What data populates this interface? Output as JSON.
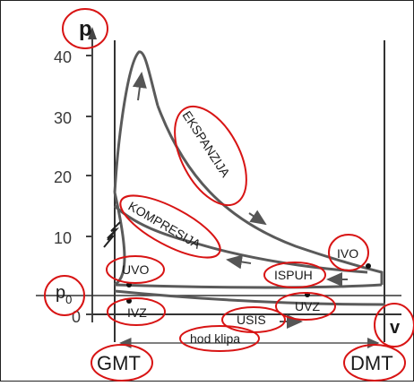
{
  "axes": {
    "y_label": "p",
    "x_label": "v",
    "y_ticks": [
      "40",
      "30",
      "20",
      "10",
      "0"
    ],
    "p0_label": "p",
    "p0_subscript": "0"
  },
  "labels": {
    "ekspanzija": "EKSPANZIJA",
    "kompresija": "KOMPRESIJA",
    "ivo": "IVO",
    "ispuh": "ISPUH",
    "uvo": "UVO",
    "ivz": "IVZ",
    "uvz": "UVZ",
    "usis": "USIS",
    "hod_klipa": "hod klipa",
    "gmt": "GMT",
    "dmt": "DMT"
  },
  "colors": {
    "annotation": "#d81414",
    "curve": "#5a5a5a",
    "paper": "#ffffff"
  }
}
